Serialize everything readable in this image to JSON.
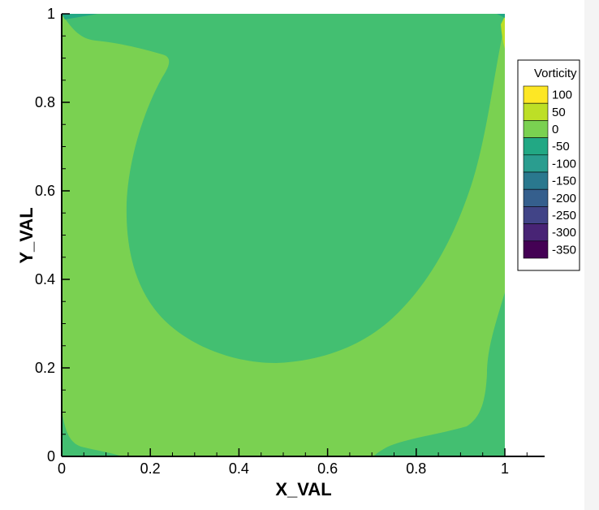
{
  "chart_data": {
    "type": "contour",
    "xlabel": "X_VAL",
    "ylabel": "Y_VAL",
    "xlim": [
      0,
      1.09
    ],
    "ylim": [
      0,
      1
    ],
    "x_ticks": [
      "0",
      "0.2",
      "0.4",
      "0.6",
      "0.8",
      "1"
    ],
    "x_tick_values": [
      0,
      0.2,
      0.4,
      0.6,
      0.8,
      1
    ],
    "y_ticks": [
      "0",
      "0.2",
      "0.4",
      "0.6",
      "0.8",
      "1"
    ],
    "y_tick_values": [
      0,
      0.2,
      0.4,
      0.6,
      0.8,
      1
    ],
    "legend": {
      "title": "Vorticity",
      "placement": "right",
      "levels": [
        {
          "label": "100",
          "color": "#fde725"
        },
        {
          "label": "50",
          "color": "#bddf26"
        },
        {
          "label": "0",
          "color": "#7ad151"
        },
        {
          "label": "-50",
          "color": "#22a884"
        },
        {
          "label": "-100",
          "color": "#2a9d8f"
        },
        {
          "label": "-150",
          "color": "#2a788e"
        },
        {
          "label": "-200",
          "color": "#355f8d"
        },
        {
          "label": "-250",
          "color": "#414487"
        },
        {
          "label": "-300",
          "color": "#482475"
        },
        {
          "label": "-350",
          "color": "#440154"
        }
      ]
    },
    "field_colors": {
      "background_band": "#7ad151",
      "central_vortex": "#43bf71",
      "corner_high": "#bddf26",
      "corner_low": "#22a884"
    }
  }
}
